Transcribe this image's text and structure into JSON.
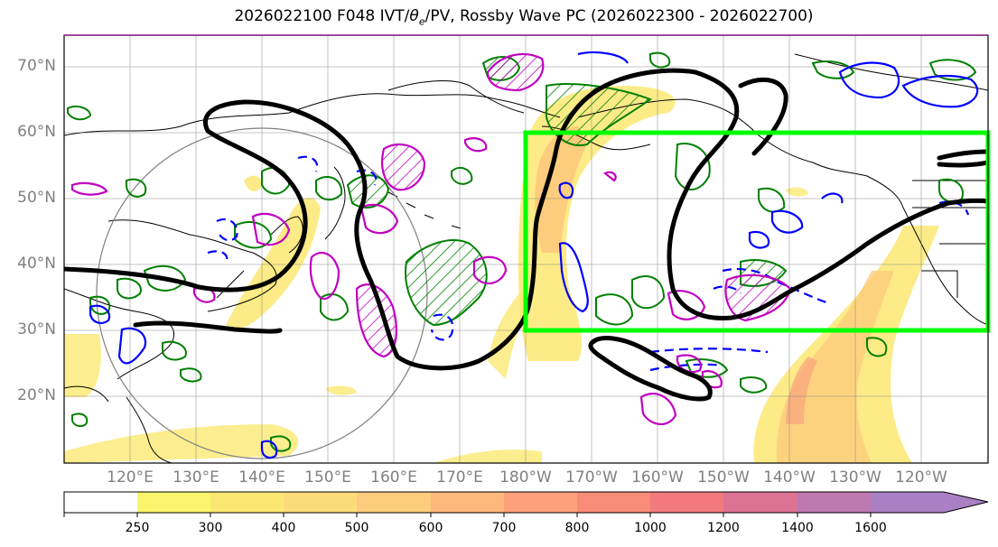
{
  "title_main": "2026022100 F048 IVT/",
  "title_theta": "θ",
  "title_sub": "e",
  "title_rest": "/PV, Rossby Wave PC (2026022300 - 2026022700)",
  "lat_labels": [
    "70°N",
    "60°N",
    "50°N",
    "40°N",
    "30°N",
    "20°N"
  ],
  "lon_labels": [
    "120°E",
    "130°E",
    "140°E",
    "150°E",
    "160°E",
    "170°E",
    "180°W",
    "170°W",
    "160°W",
    "150°W",
    "140°W",
    "130°W",
    "120°W"
  ],
  "colorbar": {
    "levels": [
      "250",
      "300",
      "400",
      "500",
      "600",
      "700",
      "800",
      "1000",
      "1200",
      "1400",
      "1600"
    ],
    "colors": [
      "#ffffff",
      "#faf46c",
      "#fbe872",
      "#fcdc7a",
      "#fdcc7d",
      "#fdb97c",
      "#fca07a",
      "#f98c78",
      "#f27a7e",
      "#dc7294",
      "#bd78b1",
      "#ab7fc4"
    ]
  },
  "map_extent": {
    "lon_min": 110,
    "lon_max": 250,
    "lat_min": 10,
    "lat_max": 75
  },
  "highlight_box": {
    "lon_min": 180,
    "lon_max": 250,
    "lat_min": 30,
    "lat_max": 60,
    "color": "#00ff00"
  },
  "contour_colors": {
    "rossby_pc": "#000000",
    "pv": "#0000ff",
    "theta_e": "#008000",
    "ivt_anom": "#c000c0"
  }
}
